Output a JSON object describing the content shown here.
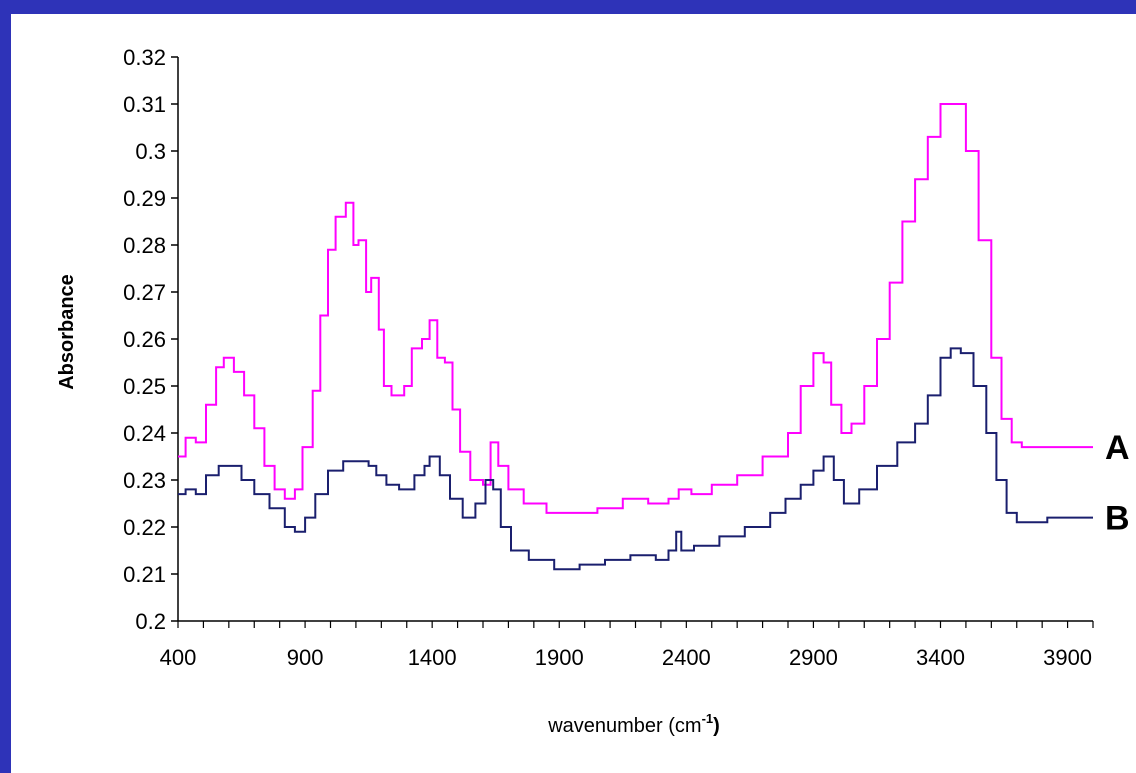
{
  "frame": {
    "color": "#2e33b8"
  },
  "chart_data": {
    "type": "line",
    "title": "",
    "xlabel_main": "wavenumber (cm",
    "xlabel_sup": "-1",
    "xlabel_close": ")",
    "ylabel": "Absorbance",
    "xlim": [
      400,
      4000
    ],
    "ylim": [
      0.2,
      0.32
    ],
    "x_ticks": [
      400,
      900,
      1400,
      1900,
      2400,
      2900,
      3400,
      3900
    ],
    "y_ticks": [
      "0.2",
      "0.21",
      "0.22",
      "0.23",
      "0.24",
      "0.25",
      "0.26",
      "0.27",
      "0.28",
      "0.29",
      "0.3",
      "0.31",
      "0.32"
    ],
    "grid": false,
    "series": [
      {
        "name": "A",
        "color": "#ff00ff",
        "points": [
          [
            400,
            0.235
          ],
          [
            430,
            0.239
          ],
          [
            470,
            0.238
          ],
          [
            510,
            0.246
          ],
          [
            550,
            0.254
          ],
          [
            580,
            0.256
          ],
          [
            620,
            0.253
          ],
          [
            660,
            0.248
          ],
          [
            700,
            0.241
          ],
          [
            740,
            0.233
          ],
          [
            780,
            0.228
          ],
          [
            820,
            0.226
          ],
          [
            860,
            0.228
          ],
          [
            890,
            0.237
          ],
          [
            930,
            0.249
          ],
          [
            960,
            0.265
          ],
          [
            990,
            0.279
          ],
          [
            1020,
            0.286
          ],
          [
            1060,
            0.289
          ],
          [
            1090,
            0.28
          ],
          [
            1110,
            0.281
          ],
          [
            1140,
            0.27
          ],
          [
            1160,
            0.273
          ],
          [
            1190,
            0.262
          ],
          [
            1210,
            0.25
          ],
          [
            1240,
            0.248
          ],
          [
            1290,
            0.25
          ],
          [
            1320,
            0.258
          ],
          [
            1360,
            0.26
          ],
          [
            1390,
            0.264
          ],
          [
            1420,
            0.256
          ],
          [
            1450,
            0.255
          ],
          [
            1480,
            0.245
          ],
          [
            1510,
            0.236
          ],
          [
            1550,
            0.23
          ],
          [
            1600,
            0.229
          ],
          [
            1630,
            0.238
          ],
          [
            1660,
            0.233
          ],
          [
            1700,
            0.228
          ],
          [
            1760,
            0.225
          ],
          [
            1850,
            0.223
          ],
          [
            1950,
            0.223
          ],
          [
            2050,
            0.224
          ],
          [
            2150,
            0.226
          ],
          [
            2250,
            0.225
          ],
          [
            2330,
            0.226
          ],
          [
            2370,
            0.228
          ],
          [
            2420,
            0.227
          ],
          [
            2500,
            0.229
          ],
          [
            2600,
            0.231
          ],
          [
            2700,
            0.235
          ],
          [
            2800,
            0.24
          ],
          [
            2850,
            0.25
          ],
          [
            2900,
            0.257
          ],
          [
            2940,
            0.255
          ],
          [
            2970,
            0.246
          ],
          [
            3010,
            0.24
          ],
          [
            3050,
            0.242
          ],
          [
            3100,
            0.25
          ],
          [
            3150,
            0.26
          ],
          [
            3200,
            0.272
          ],
          [
            3250,
            0.285
          ],
          [
            3300,
            0.294
          ],
          [
            3350,
            0.303
          ],
          [
            3400,
            0.31
          ],
          [
            3450,
            0.31
          ],
          [
            3500,
            0.3
          ],
          [
            3550,
            0.281
          ],
          [
            3600,
            0.256
          ],
          [
            3640,
            0.243
          ],
          [
            3680,
            0.238
          ],
          [
            3720,
            0.237
          ],
          [
            3780,
            0.237
          ],
          [
            3850,
            0.237
          ],
          [
            3920,
            0.237
          ],
          [
            4000,
            0.237
          ]
        ]
      },
      {
        "name": "B",
        "color": "#1a1f6e",
        "points": [
          [
            400,
            0.227
          ],
          [
            430,
            0.228
          ],
          [
            470,
            0.227
          ],
          [
            510,
            0.231
          ],
          [
            560,
            0.233
          ],
          [
            610,
            0.233
          ],
          [
            650,
            0.23
          ],
          [
            700,
            0.227
          ],
          [
            760,
            0.224
          ],
          [
            820,
            0.22
          ],
          [
            860,
            0.219
          ],
          [
            900,
            0.222
          ],
          [
            940,
            0.227
          ],
          [
            990,
            0.232
          ],
          [
            1050,
            0.234
          ],
          [
            1110,
            0.234
          ],
          [
            1150,
            0.233
          ],
          [
            1180,
            0.231
          ],
          [
            1220,
            0.229
          ],
          [
            1270,
            0.228
          ],
          [
            1330,
            0.231
          ],
          [
            1370,
            0.233
          ],
          [
            1390,
            0.235
          ],
          [
            1430,
            0.231
          ],
          [
            1470,
            0.226
          ],
          [
            1520,
            0.222
          ],
          [
            1570,
            0.225
          ],
          [
            1610,
            0.23
          ],
          [
            1640,
            0.228
          ],
          [
            1670,
            0.22
          ],
          [
            1710,
            0.215
          ],
          [
            1780,
            0.213
          ],
          [
            1880,
            0.211
          ],
          [
            1980,
            0.212
          ],
          [
            2080,
            0.213
          ],
          [
            2180,
            0.214
          ],
          [
            2280,
            0.213
          ],
          [
            2330,
            0.215
          ],
          [
            2360,
            0.219
          ],
          [
            2380,
            0.215
          ],
          [
            2430,
            0.216
          ],
          [
            2530,
            0.218
          ],
          [
            2630,
            0.22
          ],
          [
            2730,
            0.223
          ],
          [
            2790,
            0.226
          ],
          [
            2850,
            0.229
          ],
          [
            2900,
            0.232
          ],
          [
            2940,
            0.235
          ],
          [
            2980,
            0.23
          ],
          [
            3020,
            0.225
          ],
          [
            3080,
            0.228
          ],
          [
            3150,
            0.233
          ],
          [
            3230,
            0.238
          ],
          [
            3300,
            0.242
          ],
          [
            3350,
            0.248
          ],
          [
            3400,
            0.256
          ],
          [
            3440,
            0.258
          ],
          [
            3480,
            0.257
          ],
          [
            3530,
            0.25
          ],
          [
            3580,
            0.24
          ],
          [
            3620,
            0.23
          ],
          [
            3660,
            0.223
          ],
          [
            3700,
            0.221
          ],
          [
            3760,
            0.221
          ],
          [
            3820,
            0.222
          ],
          [
            3900,
            0.222
          ],
          [
            4000,
            0.222
          ]
        ]
      }
    ]
  }
}
